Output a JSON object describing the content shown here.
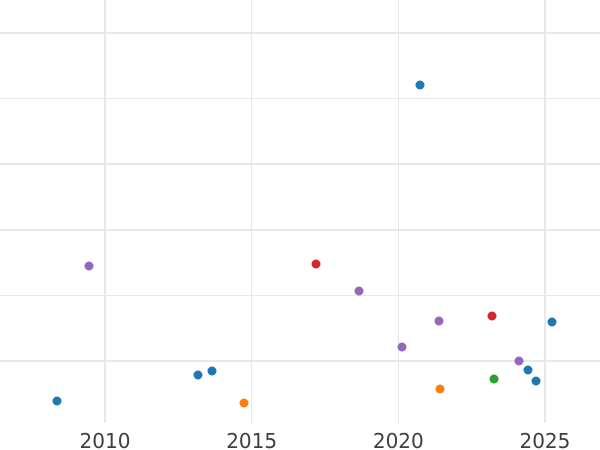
{
  "chart_data": {
    "type": "scatter",
    "title": "",
    "xlabel": "",
    "ylabel": "",
    "legend": false,
    "grid": true,
    "x_tick_labels": [
      "2010",
      "2015",
      "2020",
      "2025"
    ],
    "x_tick_years": [
      2010,
      2015,
      2020,
      2025
    ],
    "x_range_years": [
      2006.4,
      2026.9
    ],
    "y_axis": {
      "tick_labels_visible": false,
      "gridline_units": [
        1,
        2,
        3,
        4,
        5,
        6
      ],
      "y_range_units": [
        0.05,
        6.5
      ],
      "note": "y-axis labels are cropped out of the image; y values are in gridline units above the bottom axis"
    },
    "colors": {
      "background": "#ffffff",
      "grid": "#e8e8e8",
      "tick_text": "#3f3f3f",
      "blue": "#1f77b4",
      "orange": "#ff7f0e",
      "green": "#2ca02c",
      "red": "#d62728",
      "purple": "#9467bd"
    },
    "series": [
      {
        "name": "blue",
        "color": "#1f77b4",
        "points": [
          {
            "x": 2008.37,
            "y": 0.39
          },
          {
            "x": 2013.18,
            "y": 0.79
          },
          {
            "x": 2013.66,
            "y": 0.85
          },
          {
            "x": 2020.74,
            "y": 5.2
          },
          {
            "x": 2024.43,
            "y": 0.87
          },
          {
            "x": 2024.69,
            "y": 0.7
          },
          {
            "x": 2025.23,
            "y": 1.59
          }
        ]
      },
      {
        "name": "orange",
        "color": "#ff7f0e",
        "points": [
          {
            "x": 2014.75,
            "y": 0.36
          },
          {
            "x": 2021.42,
            "y": 0.57
          }
        ]
      },
      {
        "name": "green",
        "color": "#2ca02c",
        "points": [
          {
            "x": 2023.25,
            "y": 0.73
          }
        ]
      },
      {
        "name": "red",
        "color": "#d62728",
        "points": [
          {
            "x": 2017.19,
            "y": 2.48
          },
          {
            "x": 2023.18,
            "y": 1.68
          }
        ]
      },
      {
        "name": "purple",
        "color": "#9467bd",
        "points": [
          {
            "x": 2009.46,
            "y": 2.45
          },
          {
            "x": 2018.67,
            "y": 2.06
          },
          {
            "x": 2020.12,
            "y": 1.22
          },
          {
            "x": 2021.38,
            "y": 1.61
          },
          {
            "x": 2024.11,
            "y": 1.0
          }
        ]
      }
    ]
  }
}
